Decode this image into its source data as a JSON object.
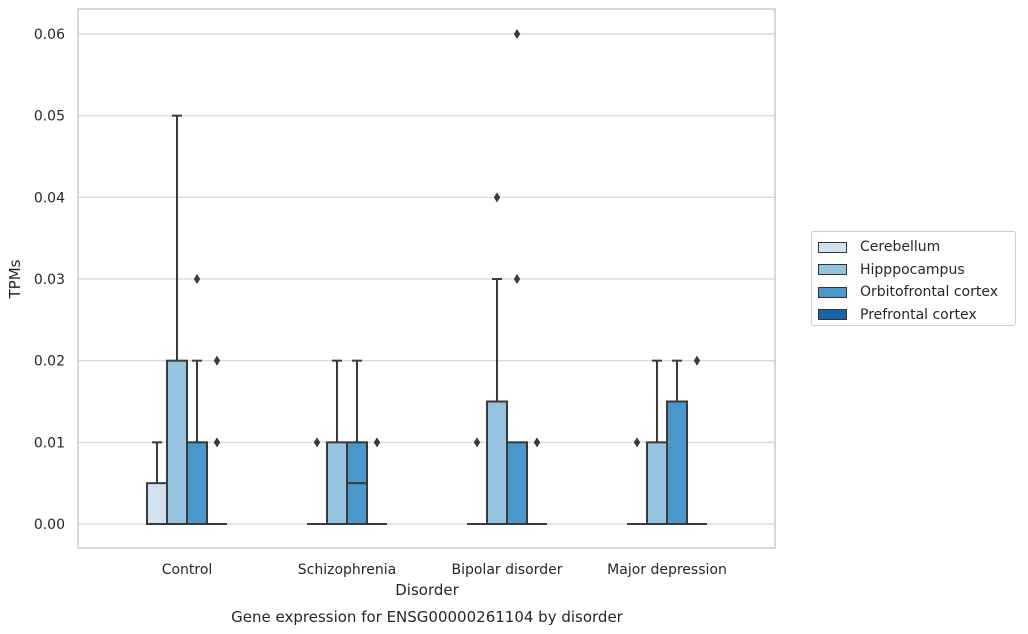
{
  "chart_data": {
    "type": "box",
    "caption": "Gene expression for ENSG00000261104 by disorder",
    "xlabel": "Disorder",
    "ylabel": "TPMs",
    "ylim": [
      -0.003,
      0.063
    ],
    "yticks": [
      "0.00",
      "0.01",
      "0.02",
      "0.03",
      "0.04",
      "0.05",
      "0.06"
    ],
    "ytick_values": [
      0,
      0.01,
      0.02,
      0.03,
      0.04,
      0.05,
      0.06
    ],
    "grid": "horizontal",
    "legend_position": "right",
    "categories": [
      "Control",
      "Schizophrenia",
      "Bipolar disorder",
      "Major depression"
    ],
    "series": [
      {
        "name": "Cerebellum",
        "color": "#d0e1f2",
        "boxes": [
          {
            "q1": 0,
            "median": 0,
            "q3": 0.005,
            "whisker_low": 0,
            "whisker_high": 0.01,
            "outliers": []
          },
          {
            "q1": 0,
            "median": 0,
            "q3": 0,
            "whisker_low": 0,
            "whisker_high": 0,
            "outliers": [
              0.01
            ]
          },
          {
            "q1": 0,
            "median": 0,
            "q3": 0,
            "whisker_low": 0,
            "whisker_high": 0,
            "outliers": [
              0.01
            ]
          },
          {
            "q1": 0,
            "median": 0,
            "q3": 0,
            "whisker_low": 0,
            "whisker_high": 0,
            "outliers": [
              0.01
            ]
          }
        ]
      },
      {
        "name": "Hipppocampus",
        "color": "#94c4df",
        "boxes": [
          {
            "q1": 0,
            "median": 0,
            "q3": 0.02,
            "whisker_low": 0,
            "whisker_high": 0.05,
            "outliers": []
          },
          {
            "q1": 0,
            "median": 0,
            "q3": 0.01,
            "whisker_low": 0,
            "whisker_high": 0.02,
            "outliers": []
          },
          {
            "q1": 0,
            "median": 0,
            "q3": 0.015,
            "whisker_low": 0,
            "whisker_high": 0.03,
            "outliers": [
              0.04
            ]
          },
          {
            "q1": 0,
            "median": 0,
            "q3": 0.01,
            "whisker_low": 0,
            "whisker_high": 0.02,
            "outliers": []
          }
        ]
      },
      {
        "name": "Orbitofrontal cortex",
        "color": "#4a98c9",
        "boxes": [
          {
            "q1": 0,
            "median": 0,
            "q3": 0.01,
            "whisker_low": 0,
            "whisker_high": 0.02,
            "outliers": [
              0.03
            ]
          },
          {
            "q1": 0,
            "median": 0.005,
            "q3": 0.01,
            "whisker_low": 0,
            "whisker_high": 0.02,
            "outliers": []
          },
          {
            "q1": 0,
            "median": 0,
            "q3": 0.01,
            "whisker_low": 0,
            "whisker_high": 0.01,
            "outliers": [
              0.03,
              0.06
            ]
          },
          {
            "q1": 0,
            "median": 0,
            "q3": 0.015,
            "whisker_low": 0,
            "whisker_high": 0.02,
            "outliers": []
          }
        ]
      },
      {
        "name": "Prefrontal cortex",
        "color": "#1764ab",
        "boxes": [
          {
            "q1": 0,
            "median": 0,
            "q3": 0,
            "whisker_low": 0,
            "whisker_high": 0,
            "outliers": [
              0.01,
              0.02
            ]
          },
          {
            "q1": 0,
            "median": 0,
            "q3": 0,
            "whisker_low": 0,
            "whisker_high": 0,
            "outliers": [
              0.01
            ]
          },
          {
            "q1": 0,
            "median": 0,
            "q3": 0,
            "whisker_low": 0,
            "whisker_high": 0,
            "outliers": [
              0.01
            ]
          },
          {
            "q1": 0,
            "median": 0,
            "q3": 0,
            "whisker_low": 0,
            "whisker_high": 0,
            "outliers": [
              0.02
            ]
          }
        ]
      }
    ]
  }
}
